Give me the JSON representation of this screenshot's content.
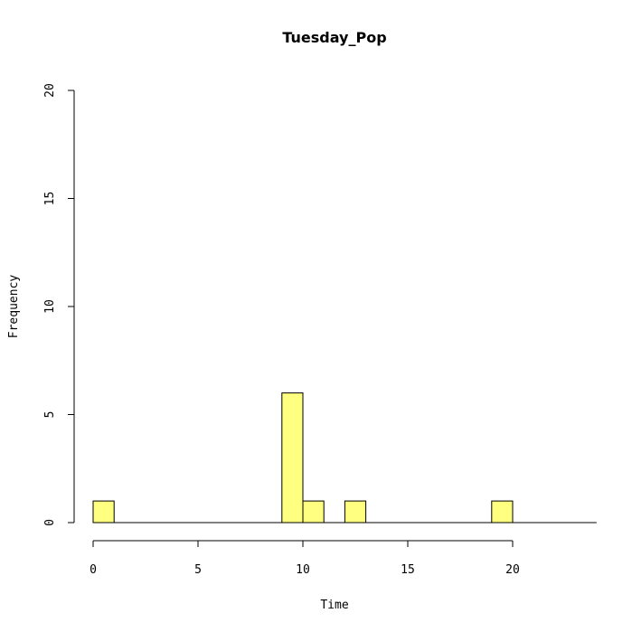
{
  "chart_data": {
    "type": "bar",
    "title": "Tuesday_Pop",
    "xlabel": "Time",
    "ylabel": "Frequency",
    "xlim": [
      0,
      24
    ],
    "ylim": [
      0,
      20
    ],
    "x_ticks": [
      0,
      5,
      10,
      15,
      20
    ],
    "y_ticks": [
      0,
      5,
      10,
      15,
      20
    ],
    "bin_width": 1,
    "bins": [
      {
        "x0": 0,
        "x1": 1,
        "count": 1
      },
      {
        "x0": 9,
        "x1": 10,
        "count": 6
      },
      {
        "x0": 10,
        "x1": 11,
        "count": 1
      },
      {
        "x0": 12,
        "x1": 13,
        "count": 1
      },
      {
        "x0": 19,
        "x1": 20,
        "count": 1
      }
    ],
    "bar_color": "#ffff80",
    "grid": false,
    "legend": "none"
  }
}
